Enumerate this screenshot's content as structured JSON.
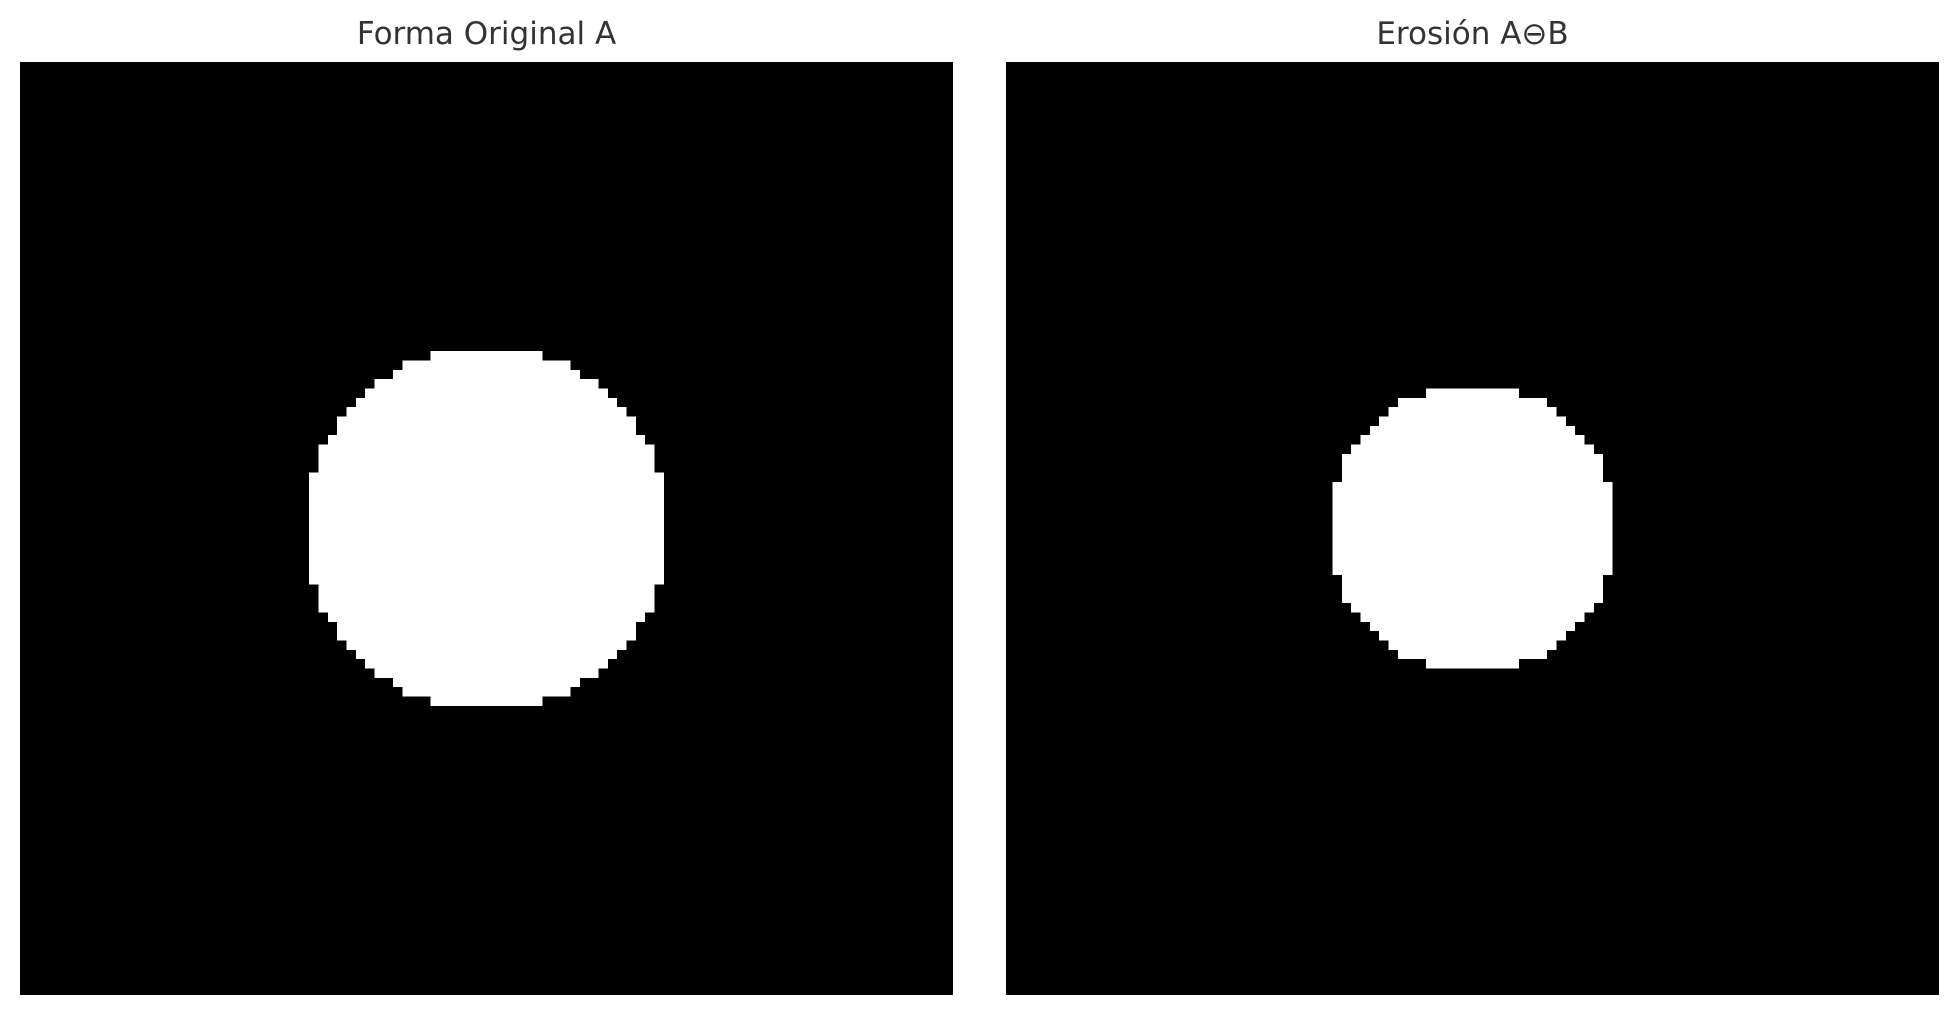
{
  "panels": [
    {
      "id": "original",
      "title": "Forma Original A",
      "image": {
        "grid_size": 100,
        "background": "#000000",
        "foreground": "#ffffff",
        "shape": "disc",
        "center": [
          49.5,
          49.5
        ],
        "radius": 19.5
      }
    },
    {
      "id": "erosion",
      "title": "Erosión A⊖B",
      "image": {
        "grid_size": 100,
        "background": "#000000",
        "foreground": "#ffffff",
        "shape": "disc",
        "center": [
          49.5,
          49.5
        ],
        "radius": 15.5
      }
    }
  ]
}
